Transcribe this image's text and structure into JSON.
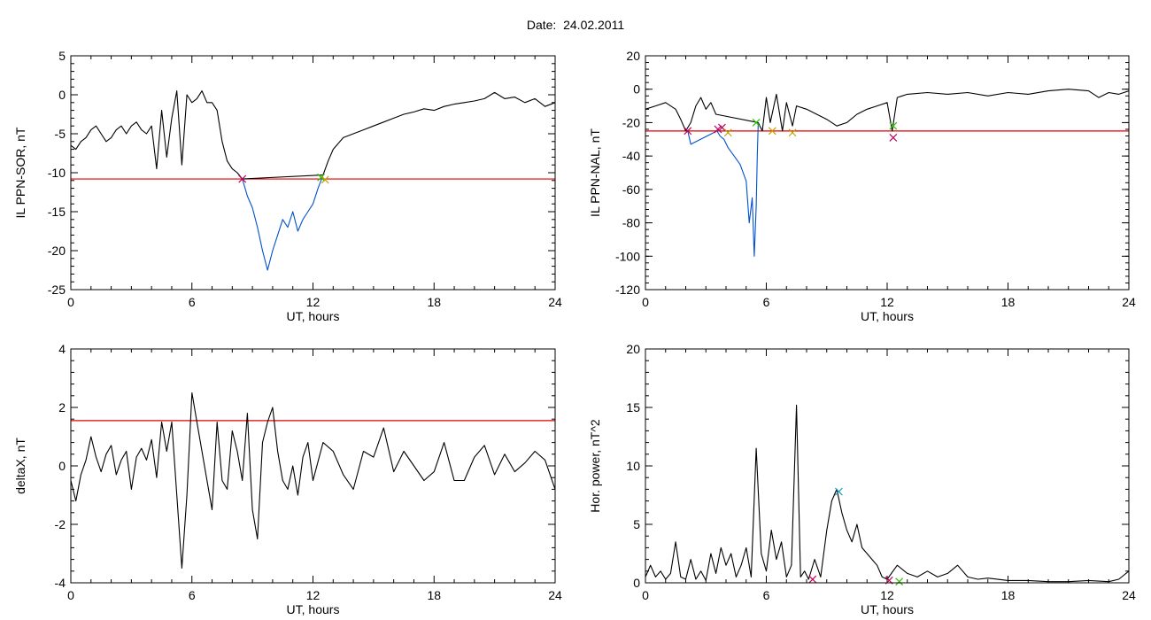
{
  "page": {
    "title": "Date:  24.02.2011"
  },
  "chart_data": [
    {
      "type": "line",
      "ylabel": "IL PPN-SOR, nT",
      "xlabel": "UT, hours",
      "xlim": [
        0,
        24
      ],
      "ylim": [
        -25,
        5
      ],
      "xticks": [
        0,
        6,
        12,
        18,
        24
      ],
      "yticks": [
        -25,
        -20,
        -15,
        -10,
        -5,
        0,
        5
      ],
      "grid": false,
      "threshold": -10.8,
      "series": [
        {
          "color": "#000000",
          "x": [
            0,
            0.25,
            0.5,
            0.75,
            1,
            1.25,
            1.5,
            1.75,
            2,
            2.25,
            2.5,
            2.75,
            3,
            3.25,
            3.5,
            3.75,
            4,
            4.25,
            4.5,
            4.75,
            5,
            5.25,
            5.5,
            5.75,
            6,
            6.25,
            6.5,
            6.75,
            7,
            7.25,
            7.5,
            7.75,
            8,
            8.25,
            8.5,
            12.5,
            12.75,
            13,
            13.5,
            14,
            14.5,
            15,
            15.5,
            16,
            16.5,
            17,
            17.5,
            18,
            18.5,
            19,
            19.5,
            20,
            20.5,
            21,
            21.5,
            22,
            22.5,
            23,
            23.5,
            24
          ],
          "y": [
            -6.5,
            -7,
            -6,
            -5.5,
            -4.5,
            -4,
            -5,
            -6,
            -5.5,
            -4.5,
            -4,
            -5,
            -4,
            -3.5,
            -4.5,
            -5,
            -4,
            -9.5,
            -2,
            -8,
            -3,
            0.5,
            -9,
            0,
            -1,
            -0.5,
            0.5,
            -1,
            -1,
            -2,
            -6,
            -8.5,
            -9.5,
            -10,
            -10.8,
            -10.3,
            -8.5,
            -7,
            -5.5,
            -5,
            -4.5,
            -4,
            -3.5,
            -3,
            -2.5,
            -2.2,
            -1.8,
            -2,
            -1.5,
            -1.2,
            -1,
            -0.8,
            -0.5,
            0.3,
            -0.5,
            -0.3,
            -1,
            -0.5,
            -1.5,
            -1
          ]
        },
        {
          "color": "#0050d0",
          "x": [
            8.5,
            8.75,
            9,
            9.25,
            9.5,
            9.75,
            10,
            10.25,
            10.5,
            10.75,
            11,
            11.25,
            11.5,
            11.75,
            12,
            12.25,
            12.5
          ],
          "y": [
            -10.8,
            -13,
            -14.5,
            -17,
            -20,
            -22.5,
            -20,
            -18,
            -16,
            -17,
            -15,
            -17.5,
            -16,
            -15,
            -14,
            -12,
            -10.3
          ]
        }
      ],
      "markers": [
        {
          "x": 8.5,
          "y": -10.8,
          "color": "#c0005a"
        },
        {
          "x": 12.4,
          "y": -10.6,
          "color": "#30c000"
        },
        {
          "x": 12.6,
          "y": -10.9,
          "color": "#c0a000"
        }
      ]
    },
    {
      "type": "line",
      "ylabel": "IL PPN-NAL, nT",
      "xlabel": "UT, hours",
      "xlim": [
        0,
        24
      ],
      "ylim": [
        -120,
        20
      ],
      "xticks": [
        0,
        6,
        12,
        18,
        24
      ],
      "yticks": [
        -120,
        -100,
        -80,
        -60,
        -40,
        -20,
        0,
        20
      ],
      "grid": false,
      "threshold": -25,
      "series": [
        {
          "color": "#000000",
          "x": [
            0,
            0.5,
            1,
            1.5,
            1.75,
            2,
            2.25,
            2.5,
            2.75,
            3,
            3.25,
            3.5,
            5.6,
            5.8,
            6,
            6.2,
            6.5,
            6.8,
            7,
            7.3,
            7.5,
            8,
            8.5,
            9,
            9.5,
            10,
            10.5,
            11,
            11.5,
            12,
            12.25,
            12.5,
            13,
            14,
            15,
            16,
            17,
            18,
            19,
            20,
            21,
            22,
            22.5,
            23,
            23.5,
            24
          ],
          "y": [
            -12,
            -10,
            -8,
            -12,
            -18,
            -25,
            -20,
            -10,
            -5,
            -12,
            -8,
            -15,
            -20,
            -25,
            -5,
            -20,
            -3,
            -25,
            -8,
            -22,
            -10,
            -12,
            -15,
            -18,
            -22,
            -20,
            -15,
            -12,
            -10,
            -8,
            -25,
            -5,
            -3,
            -2,
            -3,
            -2,
            -4,
            -2,
            -3,
            -1,
            0,
            -1,
            -5,
            -2,
            -3,
            -1
          ]
        },
        {
          "color": "#0050d0",
          "x": [
            2.1,
            2.25,
            3.55,
            3.7,
            3.9,
            4.1,
            4.4,
            4.7,
            5,
            5.15,
            5.3,
            5.4,
            5.5,
            5.55,
            5.6
          ],
          "y": [
            -25,
            -33,
            -25,
            -28,
            -30,
            -35,
            -40,
            -45,
            -55,
            -80,
            -65,
            -100,
            -70,
            -40,
            -20
          ]
        }
      ],
      "markers": [
        {
          "x": 2.1,
          "y": -25,
          "color": "#c0005a"
        },
        {
          "x": 3.6,
          "y": -24,
          "color": "#c0005a"
        },
        {
          "x": 3.8,
          "y": -23,
          "color": "#c0005a"
        },
        {
          "x": 4.1,
          "y": -26,
          "color": "#c0a000"
        },
        {
          "x": 5.5,
          "y": -20,
          "color": "#30c000"
        },
        {
          "x": 6.3,
          "y": -25,
          "color": "#c0a000"
        },
        {
          "x": 7.3,
          "y": -26,
          "color": "#c0a000"
        },
        {
          "x": 12.3,
          "y": -22,
          "color": "#30c000"
        },
        {
          "x": 12.3,
          "y": -29,
          "color": "#c0005a"
        }
      ]
    },
    {
      "type": "line",
      "ylabel": "deltaX, nT",
      "xlabel": "UT, hours",
      "xlim": [
        0,
        24
      ],
      "ylim": [
        -4,
        4
      ],
      "xticks": [
        0,
        6,
        12,
        18,
        24
      ],
      "yticks": [
        -4,
        -2,
        0,
        2,
        4
      ],
      "grid": false,
      "threshold": 1.55,
      "series": [
        {
          "color": "#000000",
          "x": [
            0,
            0.25,
            0.5,
            0.75,
            1,
            1.25,
            1.5,
            1.75,
            2,
            2.25,
            2.5,
            2.75,
            3,
            3.25,
            3.5,
            3.75,
            4,
            4.25,
            4.5,
            4.75,
            5,
            5.25,
            5.5,
            5.75,
            6,
            6.25,
            6.5,
            6.75,
            7,
            7.25,
            7.5,
            7.75,
            8,
            8.25,
            8.5,
            8.75,
            9,
            9.25,
            9.5,
            9.75,
            10,
            10.25,
            10.5,
            10.75,
            11,
            11.25,
            11.5,
            11.75,
            12,
            12.5,
            13,
            13.5,
            14,
            14.5,
            15,
            15.5,
            16,
            16.5,
            17,
            17.5,
            18,
            18.5,
            19,
            19.5,
            20,
            20.5,
            21,
            21.5,
            22,
            22.5,
            23,
            23.5,
            24
          ],
          "y": [
            -0.5,
            -1.2,
            -0.3,
            0.2,
            1,
            0.3,
            -0.2,
            0.4,
            0.7,
            -0.3,
            0.2,
            0.5,
            -0.8,
            0.3,
            0.6,
            0.2,
            0.9,
            -0.4,
            1.5,
            0.5,
            1.5,
            -1,
            -3.5,
            -1,
            2.5,
            1.5,
            0.5,
            -0.5,
            -1.5,
            1.5,
            -0.5,
            -0.8,
            1.2,
            0.5,
            -0.5,
            1.8,
            -1.5,
            -2.5,
            0.8,
            1.5,
            2,
            0.5,
            -0.5,
            -0.8,
            0,
            -1,
            0.3,
            0.8,
            -0.5,
            0.8,
            0.5,
            -0.3,
            -0.8,
            0.5,
            0.3,
            1.3,
            -0.2,
            0.5,
            0,
            -0.5,
            -0.2,
            0.8,
            -0.5,
            -0.5,
            0.3,
            0.7,
            -0.3,
            0.4,
            -0.2,
            0.1,
            0.5,
            0.2,
            -0.8
          ]
        }
      ],
      "markers": []
    },
    {
      "type": "line",
      "ylabel": "Hor. power, nT^2",
      "xlabel": "UT, hours",
      "xlim": [
        0,
        24
      ],
      "ylim": [
        0,
        20
      ],
      "xticks": [
        0,
        6,
        12,
        18,
        24
      ],
      "yticks": [
        0,
        5,
        10,
        15,
        20
      ],
      "grid": false,
      "threshold": null,
      "series": [
        {
          "color": "#000000",
          "x": [
            0,
            0.25,
            0.5,
            0.75,
            1,
            1.25,
            1.5,
            1.75,
            2,
            2.25,
            2.5,
            2.75,
            3,
            3.25,
            3.5,
            3.75,
            4,
            4.25,
            4.5,
            4.75,
            5,
            5.25,
            5.5,
            5.75,
            6,
            6.25,
            6.5,
            6.75,
            7,
            7.25,
            7.5,
            7.7,
            7.9,
            8.1,
            8.4,
            8.7,
            9,
            9.25,
            9.5,
            9.75,
            10,
            10.25,
            10.5,
            10.75,
            11,
            11.25,
            11.5,
            11.75,
            12,
            12.5,
            13,
            13.5,
            14,
            14.5,
            15,
            15.5,
            16,
            16.5,
            17,
            18,
            19,
            20,
            21,
            22,
            23,
            23.5,
            24
          ],
          "y": [
            0.5,
            1.5,
            0.5,
            1,
            0.3,
            0.8,
            3.5,
            0.5,
            0.3,
            2,
            0.3,
            1,
            0.2,
            2.5,
            0.8,
            3,
            1.5,
            2.5,
            0.5,
            1.5,
            3,
            0.5,
            11.5,
            2.5,
            1,
            4.5,
            2,
            3.5,
            0.5,
            1.5,
            15.2,
            0.5,
            1,
            0.3,
            2,
            0.5,
            4.5,
            7,
            8,
            6,
            4.5,
            3.5,
            5,
            3,
            2.5,
            2,
            1.5,
            0.5,
            0.3,
            1.5,
            0.8,
            0.5,
            1,
            0.5,
            0.8,
            1.5,
            0.5,
            0.3,
            0.4,
            0.2,
            0.2,
            0.1,
            0.1,
            0.2,
            0.1,
            0.3,
            1
          ]
        }
      ],
      "markers": [
        {
          "x": 9.6,
          "y": 7.8,
          "color": "#20a0c0"
        },
        {
          "x": 8.3,
          "y": 0.3,
          "color": "#c0005a"
        },
        {
          "x": 12.1,
          "y": 0.2,
          "color": "#c0005a"
        },
        {
          "x": 12.6,
          "y": 0.1,
          "color": "#30c000"
        }
      ]
    }
  ]
}
